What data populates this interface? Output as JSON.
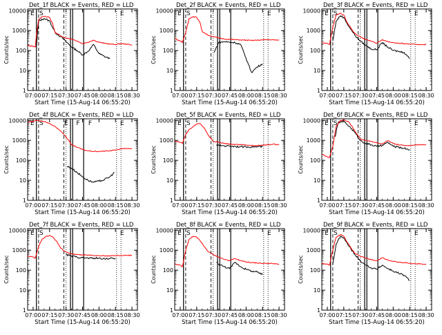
{
  "figure": {
    "x_axis_label": "Start Time (15-Aug-14 06:55:20)",
    "y_axis_label": "Counts/sec",
    "x_tick_labels": [
      "07:00",
      "07:15",
      "07:30",
      "07:45",
      "08:00",
      "08:15",
      "08:30"
    ],
    "y_tick_labels": [
      "1",
      "10",
      "100",
      "1000",
      "10000"
    ],
    "colors": {
      "events": "#000000",
      "lld": "#ff0000",
      "axes": "#000000",
      "background": "#ffffff"
    }
  },
  "chart_data": [
    {
      "type": "line",
      "title": "Det_1f BLACK = Events, RED = LLD",
      "xlabel": "Start Time (15-Aug-14 06:55:20)",
      "ylabel": "Counts/sec",
      "xlim": [
        "06:55",
        "08:35"
      ],
      "ylim": [
        1,
        12000
      ],
      "yscale": "log",
      "top_labels": [
        "E",
        "S",
        "E"
      ],
      "series": [
        {
          "name": "Events",
          "color": "#000000",
          "x": [
            "07:02",
            "07:03",
            "07:05",
            "07:10",
            "07:15",
            "07:20",
            "07:25",
            "07:30",
            "07:35",
            "07:40",
            "07:45",
            "07:50",
            "07:55",
            "08:00",
            "08:05",
            "08:10"
          ],
          "values": [
            null,
            150,
            3000,
            4000,
            3000,
            800,
            500,
            280,
            150,
            100,
            60,
            90,
            200,
            70,
            50,
            40
          ]
        },
        {
          "name": "LLD",
          "color": "#ff0000",
          "x": [
            "06:55",
            "07:00",
            "07:02",
            "07:03",
            "07:05",
            "07:08",
            "07:10",
            "07:15",
            "07:18",
            "07:20",
            "07:25",
            "07:30",
            "07:35",
            "07:40",
            "07:45",
            "07:50",
            "07:55",
            "08:00",
            "08:05",
            "08:10",
            "08:15",
            "08:20",
            "08:25",
            "08:30"
          ],
          "values": [
            180,
            160,
            150,
            600,
            3500,
            5000,
            5200,
            4500,
            2000,
            800,
            550,
            420,
            380,
            300,
            220,
            260,
            330,
            260,
            230,
            210,
            200,
            220,
            210,
            190
          ]
        }
      ]
    },
    {
      "type": "line",
      "title": "Det_2f BLACK = Events, RED = LLD",
      "xlabel": "Start Time (15-Aug-14 06:55:20)",
      "ylabel": "Counts/sec",
      "xlim": [
        "06:55",
        "08:35"
      ],
      "ylim": [
        1,
        12000
      ],
      "yscale": "log",
      "top_labels": [
        "E",
        "S",
        "E"
      ],
      "series": [
        {
          "name": "Events",
          "color": "#000000",
          "x": [
            "07:31",
            "07:33",
            "07:35",
            "07:40",
            "07:45",
            "07:50",
            "07:55",
            "08:00",
            "08:05",
            "08:10",
            "08:15"
          ],
          "values": [
            80,
            150,
            250,
            280,
            260,
            250,
            200,
            40,
            8,
            15,
            22
          ]
        },
        {
          "name": "LLD",
          "color": "#ff0000",
          "x": [
            "06:55",
            "07:00",
            "07:02",
            "07:05",
            "07:08",
            "07:12",
            "07:15",
            "07:18",
            "07:20",
            "07:25",
            "07:30",
            "07:35",
            "07:40",
            "07:45",
            "07:50",
            "07:55",
            "08:00",
            "08:05",
            "08:10",
            "08:15",
            "08:20",
            "08:25",
            "08:30"
          ],
          "values": [
            400,
            300,
            250,
            800,
            4000,
            5000,
            4500,
            2500,
            900,
            600,
            500,
            420,
            380,
            360,
            350,
            340,
            330,
            320,
            330,
            340,
            350,
            340,
            330
          ]
        }
      ]
    },
    {
      "type": "line",
      "title": "Det_3f BLACK = Events, RED = LLD",
      "xlabel": "Start Time (15-Aug-14 06:55:20)",
      "ylabel": "Counts/sec",
      "xlim": [
        "06:55",
        "08:35"
      ],
      "ylim": [
        1,
        12000
      ],
      "yscale": "log",
      "top_labels": [
        "E",
        "S",
        "E"
      ],
      "series": [
        {
          "name": "Events",
          "color": "#000000",
          "x": [
            "07:05",
            "07:08",
            "07:12",
            "07:15",
            "07:20",
            "07:25",
            "07:30",
            "07:35",
            "07:40",
            "07:45",
            "07:50",
            "07:55",
            "08:00",
            "08:05",
            "08:10",
            "08:15"
          ],
          "values": [
            300,
            3000,
            5500,
            4500,
            1500,
            600,
            300,
            180,
            120,
            110,
            250,
            150,
            100,
            90,
            80,
            40
          ]
        },
        {
          "name": "LLD",
          "color": "#ff0000",
          "x": [
            "06:55",
            "07:00",
            "07:02",
            "07:05",
            "07:08",
            "07:12",
            "07:15",
            "07:18",
            "07:22",
            "07:25",
            "07:30",
            "07:35",
            "07:40",
            "07:45",
            "07:50",
            "07:55",
            "08:00",
            "08:05",
            "08:10",
            "08:15",
            "08:20",
            "08:25",
            "08:30"
          ],
          "values": [
            250,
            230,
            200,
            1500,
            6000,
            7500,
            6000,
            2500,
            1200,
            700,
            500,
            350,
            300,
            230,
            350,
            280,
            250,
            230,
            220,
            210,
            200,
            200,
            200
          ]
        }
      ]
    },
    {
      "type": "line",
      "title": "Det_4f BLACK = Events, RED = LLD",
      "xlabel": "Start Time (15-Aug-14 06:55:20)",
      "ylabel": "Counts/sec",
      "xlim": [
        "06:55",
        "08:35"
      ],
      "ylim": [
        1,
        12000
      ],
      "yscale": "log",
      "top_labels": [
        "E",
        "S",
        "E",
        "F",
        "F",
        "E"
      ],
      "series": [
        {
          "name": "Events",
          "color": "#000000",
          "x": [
            "07:31",
            "07:35",
            "07:40",
            "07:45",
            "07:50",
            "07:55",
            "08:00",
            "08:05",
            "08:10",
            "08:14"
          ],
          "values": [
            50,
            40,
            25,
            15,
            10,
            8,
            9,
            11,
            15,
            25
          ]
        },
        {
          "name": "LLD",
          "color": "#ff0000",
          "x": [
            "06:55",
            "07:00",
            "07:03",
            "07:06",
            "07:10",
            "07:15",
            "07:20",
            "07:25",
            "07:30",
            "07:35",
            "07:40",
            "07:45",
            "07:50",
            "07:55",
            "08:00",
            "08:05",
            "08:10",
            "08:15",
            "08:20",
            "08:25",
            "08:30"
          ],
          "values": [
            8000,
            9000,
            10000,
            9500,
            8500,
            7000,
            5000,
            3000,
            1500,
            600,
            450,
            350,
            300,
            280,
            280,
            290,
            300,
            330,
            380,
            400,
            370
          ]
        }
      ]
    },
    {
      "type": "line",
      "title": "Det_5f BLACK = Events, RED = LLD",
      "xlabel": "Start Time (15-Aug-14 06:55:20)",
      "ylabel": "Counts/sec",
      "xlim": [
        "06:55",
        "08:35"
      ],
      "ylim": [
        1,
        12000
      ],
      "yscale": "log",
      "top_labels": [
        "E",
        "S",
        "E"
      ],
      "series": [
        {
          "name": "Events",
          "color": "#000000",
          "x": [
            "07:33",
            "07:35",
            "07:40",
            "07:45",
            "07:50",
            "07:55",
            "08:00",
            "08:05",
            "08:10",
            "08:15"
          ],
          "values": [
            600,
            560,
            540,
            520,
            500,
            480,
            470,
            480,
            480,
            480
          ]
        },
        {
          "name": "LLD",
          "color": "#ff0000",
          "x": [
            "06:55",
            "07:00",
            "07:02",
            "07:05",
            "07:08",
            "07:12",
            "07:15",
            "07:18",
            "07:22",
            "07:25",
            "07:30",
            "07:35",
            "07:40",
            "07:45",
            "07:50",
            "07:55",
            "08:00",
            "08:05",
            "08:10",
            "08:15",
            "08:20",
            "08:25",
            "08:30"
          ],
          "values": [
            900,
            800,
            700,
            2000,
            3500,
            5000,
            6500,
            7000,
            4000,
            2000,
            900,
            800,
            700,
            650,
            620,
            600,
            580,
            560,
            560,
            580,
            600,
            650,
            600
          ]
        }
      ]
    },
    {
      "type": "line",
      "title": "Det_6f BLACK = Events, RED = LLD",
      "xlabel": "Start Time (15-Aug-14 06:55:20)",
      "ylabel": "Counts/sec",
      "xlim": [
        "06:55",
        "08:35"
      ],
      "ylim": [
        1,
        12000
      ],
      "yscale": "log",
      "top_labels": [
        "E",
        "S",
        "E"
      ],
      "series": [
        {
          "name": "Events",
          "color": "#000000",
          "x": [
            "07:07",
            "07:10",
            "07:15",
            "07:20",
            "07:25",
            "07:30",
            "07:35",
            "07:40",
            "07:45",
            "07:50",
            "07:55",
            "08:00",
            "08:05",
            "08:10",
            "08:15"
          ],
          "values": [
            1500,
            8000,
            9000,
            5000,
            2500,
            1000,
            700,
            600,
            500,
            550,
            800,
            500,
            450,
            400,
            350
          ]
        },
        {
          "name": "LLD",
          "color": "#ff0000",
          "x": [
            "06:55",
            "07:00",
            "07:02",
            "07:05",
            "07:08",
            "07:12",
            "07:15",
            "07:20",
            "07:25",
            "07:30",
            "07:35",
            "07:40",
            "07:45",
            "07:50",
            "07:55",
            "08:00",
            "08:05",
            "08:10",
            "08:15",
            "08:20",
            "08:25",
            "08:30"
          ],
          "values": [
            200,
            150,
            140,
            500,
            5000,
            10000,
            10500,
            8000,
            3000,
            1200,
            1000,
            900,
            750,
            650,
            950,
            700,
            600,
            560,
            550,
            600,
            620,
            600
          ]
        }
      ]
    },
    {
      "type": "line",
      "title": "Det_7f BLACK = Events, RED = LLD",
      "xlabel": "Start Time (15-Aug-14 06:55:20)",
      "ylabel": "Counts/sec",
      "xlim": [
        "06:55",
        "08:35"
      ],
      "ylim": [
        1,
        12000
      ],
      "yscale": "log",
      "top_labels": [
        "E",
        "S",
        "E"
      ],
      "series": [
        {
          "name": "Events",
          "color": "#000000",
          "x": [
            "07:30",
            "07:35",
            "07:40",
            "07:45",
            "07:50",
            "07:55",
            "08:00",
            "08:05",
            "08:10",
            "08:15"
          ],
          "values": [
            600,
            500,
            450,
            420,
            400,
            400,
            390,
            380,
            380,
            400
          ]
        },
        {
          "name": "LLD",
          "color": "#ff0000",
          "x": [
            "06:55",
            "07:00",
            "07:02",
            "07:05",
            "07:08",
            "07:12",
            "07:15",
            "07:18",
            "07:22",
            "07:25",
            "07:30",
            "07:35",
            "07:40",
            "07:45",
            "07:50",
            "07:55",
            "08:00",
            "08:05",
            "08:10",
            "08:15",
            "08:20",
            "08:25",
            "08:30"
          ],
          "values": [
            500,
            450,
            400,
            1500,
            3500,
            5000,
            5500,
            4500,
            2500,
            1300,
            800,
            650,
            600,
            580,
            560,
            540,
            530,
            520,
            520,
            530,
            540,
            550,
            540
          ]
        }
      ]
    },
    {
      "type": "line",
      "title": "Det_8f BLACK = Events, RED = LLD",
      "xlabel": "Start Time (15-Aug-14 06:55:20)",
      "ylabel": "Counts/sec",
      "xlim": [
        "06:55",
        "08:35"
      ],
      "ylim": [
        1,
        12000
      ],
      "yscale": "log",
      "top_labels": [
        "E",
        "S",
        "E"
      ],
      "series": [
        {
          "name": "Events",
          "color": "#000000",
          "x": [
            "07:33",
            "07:35",
            "07:40",
            "07:45",
            "07:50",
            "07:55",
            "08:00",
            "08:05",
            "08:10",
            "08:15"
          ],
          "values": [
            250,
            200,
            150,
            120,
            250,
            150,
            110,
            90,
            80,
            60
          ]
        },
        {
          "name": "LLD",
          "color": "#ff0000",
          "x": [
            "06:55",
            "07:00",
            "07:02",
            "07:05",
            "07:08",
            "07:12",
            "07:15",
            "07:18",
            "07:22",
            "07:25",
            "07:30",
            "07:35",
            "07:40",
            "07:45",
            "07:50",
            "07:55",
            "08:00",
            "08:05",
            "08:10",
            "08:15",
            "08:20",
            "08:25",
            "08:30"
          ],
          "values": [
            200,
            180,
            150,
            1000,
            3500,
            5000,
            4500,
            3000,
            1500,
            900,
            600,
            450,
            350,
            300,
            380,
            300,
            260,
            240,
            230,
            220,
            220,
            210,
            200
          ]
        }
      ]
    },
    {
      "type": "line",
      "title": "Det_9f BLACK = Events, RED = LLD",
      "xlabel": "Start Time (15-Aug-14 06:55:20)",
      "ylabel": "Counts/sec",
      "xlim": [
        "06:55",
        "08:35"
      ],
      "ylim": [
        1,
        12000
      ],
      "yscale": "log",
      "top_labels": [
        "E",
        "S",
        "E"
      ],
      "series": [
        {
          "name": "Events",
          "color": "#000000",
          "x": [
            "07:05",
            "07:08",
            "07:12",
            "07:15",
            "07:20",
            "07:25",
            "07:30",
            "07:35",
            "07:40",
            "07:45",
            "07:50",
            "07:55",
            "08:00",
            "08:05",
            "08:10",
            "08:15"
          ],
          "values": [
            200,
            2000,
            5000,
            4000,
            1500,
            600,
            300,
            180,
            130,
            110,
            180,
            120,
            90,
            70,
            55,
            30
          ]
        },
        {
          "name": "LLD",
          "color": "#ff0000",
          "x": [
            "06:55",
            "07:00",
            "07:02",
            "07:05",
            "07:08",
            "07:12",
            "07:15",
            "07:18",
            "07:22",
            "07:25",
            "07:30",
            "07:35",
            "07:40",
            "07:45",
            "07:50",
            "07:55",
            "08:00",
            "08:05",
            "08:10",
            "08:15",
            "08:20",
            "08:25",
            "08:30"
          ],
          "values": [
            220,
            200,
            180,
            1000,
            4500,
            6000,
            5000,
            2500,
            1200,
            700,
            500,
            400,
            330,
            300,
            420,
            320,
            280,
            250,
            240,
            220,
            210,
            210,
            200
          ]
        }
      ]
    }
  ]
}
